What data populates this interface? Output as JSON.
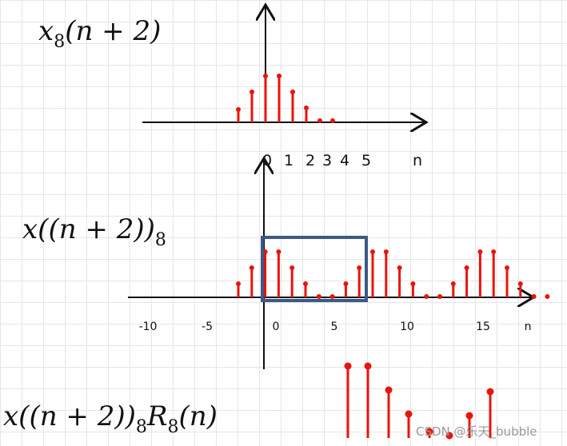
{
  "panels": [
    {
      "label": {
        "base": "x",
        "sub": "8",
        "rest": "(n + 2)"
      },
      "axis_labels": [
        "0",
        "1",
        "2",
        "3",
        "4",
        "5",
        "n"
      ]
    },
    {
      "label": {
        "base": "x((n + 2))",
        "sub": "8"
      },
      "axis_labels": [
        "-10",
        "-5",
        "0",
        "5",
        "10",
        "15",
        "n"
      ]
    },
    {
      "label": {
        "base": "x((n + 2))",
        "sub": "8",
        "base2": "R",
        "sub2": "8",
        "rest": "(n)"
      }
    }
  ],
  "watermark": "CSDN @乐天_bubble"
}
